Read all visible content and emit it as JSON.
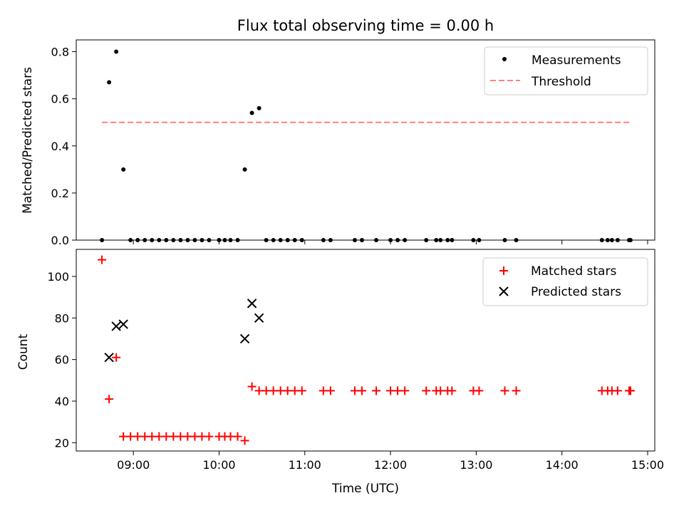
{
  "chart_data": [
    {
      "type": "scatter",
      "title": "Flux total observing time = 0.00 h",
      "xlabel": "",
      "ylabel": "Matched/Predicted stars",
      "ylim": [
        0,
        0.85
      ],
      "yticks": [
        0.0,
        0.2,
        0.4,
        0.6,
        0.8
      ],
      "ytick_labels": [
        "0.0",
        "0.2",
        "0.4",
        "0.6",
        "0.8"
      ],
      "legend": "top-right",
      "series": [
        {
          "name": "Measurements",
          "marker": "dot",
          "color": "#000000",
          "x": [
            "08:38",
            "08:43",
            "08:48",
            "08:53",
            "08:58",
            "09:03",
            "09:08",
            "09:13",
            "09:18",
            "09:23",
            "09:28",
            "09:33",
            "09:38",
            "09:43",
            "09:48",
            "09:53",
            "10:00",
            "10:04",
            "10:08",
            "10:13",
            "10:18",
            "10:23",
            "10:28",
            "10:33",
            "10:38",
            "10:43",
            "10:48",
            "10:53",
            "10:58",
            "11:13",
            "11:18",
            "11:35",
            "11:40",
            "11:50",
            "12:00",
            "12:05",
            "12:10",
            "12:25",
            "12:32",
            "12:35",
            "12:40",
            "12:43",
            "12:58",
            "13:02",
            "13:20",
            "13:28",
            "14:28",
            "14:32",
            "14:35",
            "14:39",
            "14:47",
            "14:48"
          ],
          "y": [
            0.0,
            0.67,
            0.8,
            0.3,
            0.0,
            0.0,
            0.0,
            0.0,
            0.0,
            0.0,
            0.0,
            0.0,
            0.0,
            0.0,
            0.0,
            0.0,
            0.0,
            0.0,
            0.0,
            0.0,
            0.3,
            0.54,
            0.56,
            0.0,
            0.0,
            0.0,
            0.0,
            0.0,
            0.0,
            0.0,
            0.0,
            0.0,
            0.0,
            0.0,
            0.0,
            0.0,
            0.0,
            0.0,
            0.0,
            0.0,
            0.0,
            0.0,
            0.0,
            0.0,
            0.0,
            0.0,
            0.0,
            0.0,
            0.0,
            0.0,
            0.0,
            0.0
          ]
        },
        {
          "name": "Threshold",
          "marker": "dashed-line",
          "color": "#ff7f7f",
          "x": [
            "08:38",
            "14:48"
          ],
          "y": [
            0.5,
            0.5
          ]
        }
      ]
    },
    {
      "type": "scatter",
      "title": "",
      "xlabel": "Time (UTC)",
      "ylabel": "Count",
      "ylim": [
        16,
        113
      ],
      "yticks": [
        20,
        40,
        60,
        80,
        100
      ],
      "ytick_labels": [
        "20",
        "40",
        "60",
        "80",
        "100"
      ],
      "xlim": [
        "08:20",
        "15:05"
      ],
      "xticks": [
        "09:00",
        "10:00",
        "11:00",
        "12:00",
        "13:00",
        "14:00",
        "15:00"
      ],
      "legend": "top-right",
      "series": [
        {
          "name": "Matched stars",
          "marker": "plus",
          "color": "#ff0000",
          "x": [
            "08:38",
            "08:43",
            "08:48",
            "08:53",
            "08:58",
            "09:03",
            "09:08",
            "09:13",
            "09:18",
            "09:23",
            "09:28",
            "09:33",
            "09:38",
            "09:43",
            "09:48",
            "09:53",
            "10:00",
            "10:04",
            "10:08",
            "10:13",
            "10:18",
            "10:23",
            "10:28",
            "10:33",
            "10:38",
            "10:43",
            "10:48",
            "10:53",
            "10:58",
            "11:13",
            "11:18",
            "11:35",
            "11:40",
            "11:50",
            "12:00",
            "12:05",
            "12:10",
            "12:25",
            "12:32",
            "12:35",
            "12:40",
            "12:43",
            "12:58",
            "13:02",
            "13:20",
            "13:28",
            "14:28",
            "14:32",
            "14:35",
            "14:39",
            "14:47",
            "14:48"
          ],
          "y": [
            108,
            41,
            61,
            23,
            23,
            23,
            23,
            23,
            23,
            23,
            23,
            23,
            23,
            23,
            23,
            23,
            23,
            23,
            23,
            23,
            21,
            47,
            45,
            45,
            45,
            45,
            45,
            45,
            45,
            45,
            45,
            45,
            45,
            45,
            45,
            45,
            45,
            45,
            45,
            45,
            45,
            45,
            45,
            45,
            45,
            45,
            45,
            45,
            45,
            45,
            45,
            45
          ]
        },
        {
          "name": "Predicted stars",
          "marker": "x",
          "color": "#000000",
          "x": [
            "08:43",
            "08:48",
            "08:53",
            "10:18",
            "10:23",
            "10:28"
          ],
          "y": [
            61,
            76,
            77,
            70,
            87,
            80
          ]
        }
      ]
    }
  ]
}
